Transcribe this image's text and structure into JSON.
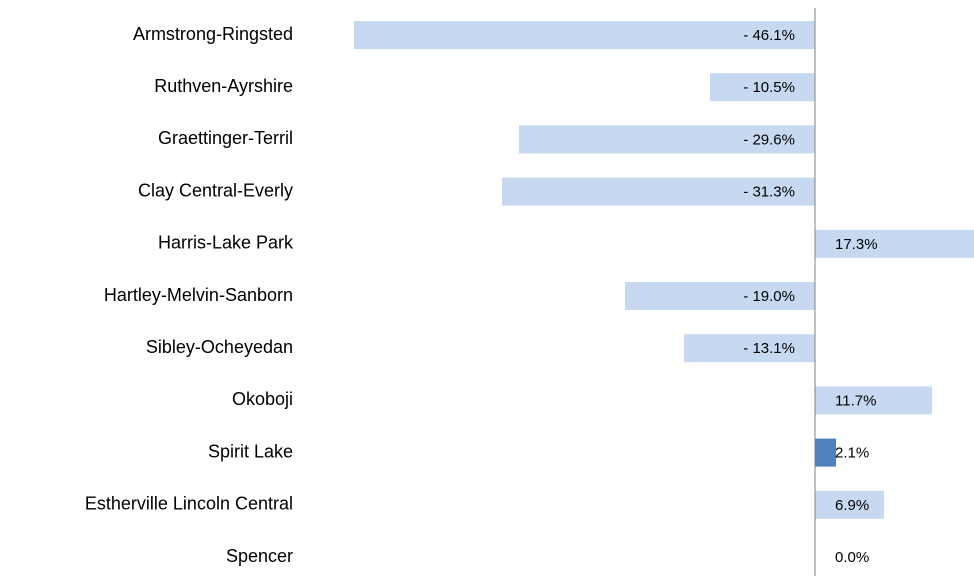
{
  "chart_data": {
    "type": "barh",
    "categories": [
      "Armstrong-Ringsted",
      "Ruthven-Ayrshire",
      "Graettinger-Terril",
      "Clay Central-Everly",
      "Harris-Lake Park",
      "Hartley-Melvin-Sanborn",
      "Sibley-Ocheyedan",
      "Okoboji",
      "Spirit Lake",
      "Estherville Lincoln Central",
      "Spencer"
    ],
    "values": [
      -46.1,
      -10.5,
      -29.6,
      -31.3,
      17.3,
      -19.0,
      -13.1,
      11.7,
      2.1,
      6.9,
      0.0
    ],
    "value_labels": [
      "- 46.1%",
      "- 10.5%",
      "- 29.6%",
      "- 31.3%",
      "17.3%",
      "- 19.0%",
      "- 13.1%",
      "11.7%",
      "2.1%",
      "6.9%",
      "0.0%"
    ],
    "colors": [
      "#c6d9f1",
      "#c6d9f1",
      "#c6d9f1",
      "#c6d9f1",
      "#c6d9f1",
      "#c6d9f1",
      "#c6d9f1",
      "#c6d9f1",
      "#4f81bd",
      "#c6d9f1",
      "#c6d9f1"
    ],
    "xlim": [
      -50,
      15.9
    ]
  }
}
